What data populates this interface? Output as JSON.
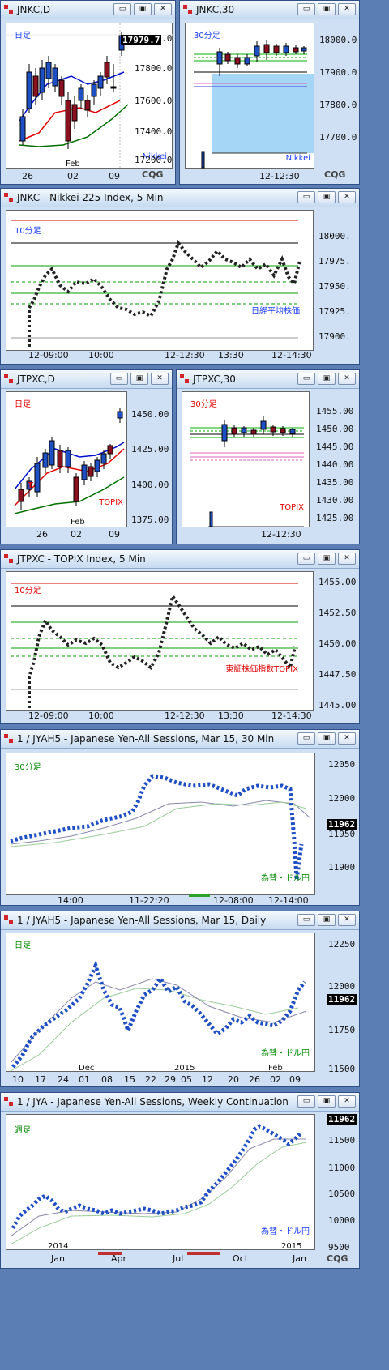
{
  "windows": {
    "w1": {
      "title": "JNKC,D",
      "tag": "日足",
      "label": "Nikkei",
      "price": "17979.7",
      "yticks": [
        "18000.0",
        "17800.0",
        "17600.0",
        "17400.0",
        "17200.0"
      ],
      "xticks": [
        "26",
        "02",
        "09"
      ],
      "xtop": "Feb",
      "cqg": "CQG"
    },
    "w2": {
      "title": "JNKC,30",
      "tag": "30分足",
      "label": "Nikkei",
      "yticks": [
        "18000.0",
        "17900.0",
        "17800.0",
        "17700.0"
      ],
      "xticks": [
        "12-12:30"
      ],
      "cqg": "CQG"
    },
    "w3": {
      "title": "JNKC - Nikkei 225 Index, 5 Min",
      "tag": "10分足",
      "label": "日経平均株価",
      "yticks": [
        "18000.",
        "17975.",
        "17950.",
        "17925.",
        "17900."
      ],
      "xticks": [
        "12-09:00",
        "10:00",
        "12-12:30",
        "13:30",
        "12-14:30"
      ]
    },
    "w4": {
      "title": "JTPXC,D",
      "tag": "日足",
      "label": "TOPIX",
      "marker": "T",
      "yticks": [
        "1450.00",
        "1425.00",
        "1400.00",
        "1375.00"
      ],
      "xticks": [
        "26",
        "02",
        "09"
      ],
      "xtop": "Feb"
    },
    "w5": {
      "title": "JTPXC,30",
      "tag": "30分足",
      "label": "TOPIX",
      "yticks": [
        "1455.00",
        "1450.00",
        "1445.00",
        "1440.00",
        "1435.00",
        "1430.00",
        "1425.00"
      ],
      "xticks": [
        "12-12:30"
      ]
    },
    "w6": {
      "title": "JTPXC - TOPIX Index, 5 Min",
      "tag": "10分足",
      "label": "東証株価指数TOPIX",
      "yticks": [
        "1455.00",
        "1452.50",
        "1450.00",
        "1447.50",
        "1445.00"
      ],
      "xticks": [
        "12-09:00",
        "10:00",
        "12-12:30",
        "13:30",
        "12-14:30"
      ]
    },
    "w7": {
      "title": "1 / JYAH5 - Japanese Yen-All Sessions, Mar 15, 30 Min",
      "tag": "30分足",
      "label": "為替・ドル円",
      "price": "11962",
      "yticks": [
        "12050",
        "12000",
        "11950",
        "11900"
      ],
      "xticks": [
        "14:00",
        "11-22:20",
        "12-08:00",
        "12-14:00"
      ]
    },
    "w8": {
      "title": "1 / JYAH5 - Japanese Yen-All Sessions, Mar 15, Daily",
      "tag": "日足",
      "label": "為替・ドル円",
      "price": "11962",
      "yticks": [
        "12250",
        "12000",
        "11750",
        "11500"
      ],
      "xticks": [
        "10",
        "17",
        "24",
        "01",
        "08",
        "15",
        "22",
        "29",
        "05",
        "12",
        "20",
        "26",
        "02",
        "09"
      ],
      "xtop": [
        "Dec",
        "2015",
        "Feb"
      ]
    },
    "w9": {
      "title": "1 / JYA - Japanese Yen-All Sessions, Weekly Continuation",
      "tag": "週足",
      "label": "為替・ドル円",
      "price": "11962",
      "yticks": [
        "11500",
        "11000",
        "10500",
        "10000",
        "9500"
      ],
      "xticks": [
        "Jan",
        "Apr",
        "Jul",
        "Oct",
        "Jan"
      ],
      "xtop": [
        "2014",
        "2015"
      ],
      "cqg": "CQG"
    }
  },
  "buttons": {
    "minimize": "▭",
    "restore": "▣",
    "close": "✕"
  },
  "colors": {
    "up": "#1f4fc4",
    "down": "#8a1020",
    "frame": "#2f4f86",
    "tag_blue": "#1a3cff",
    "tag_red": "#e00000",
    "tag_green": "#008a00"
  }
}
